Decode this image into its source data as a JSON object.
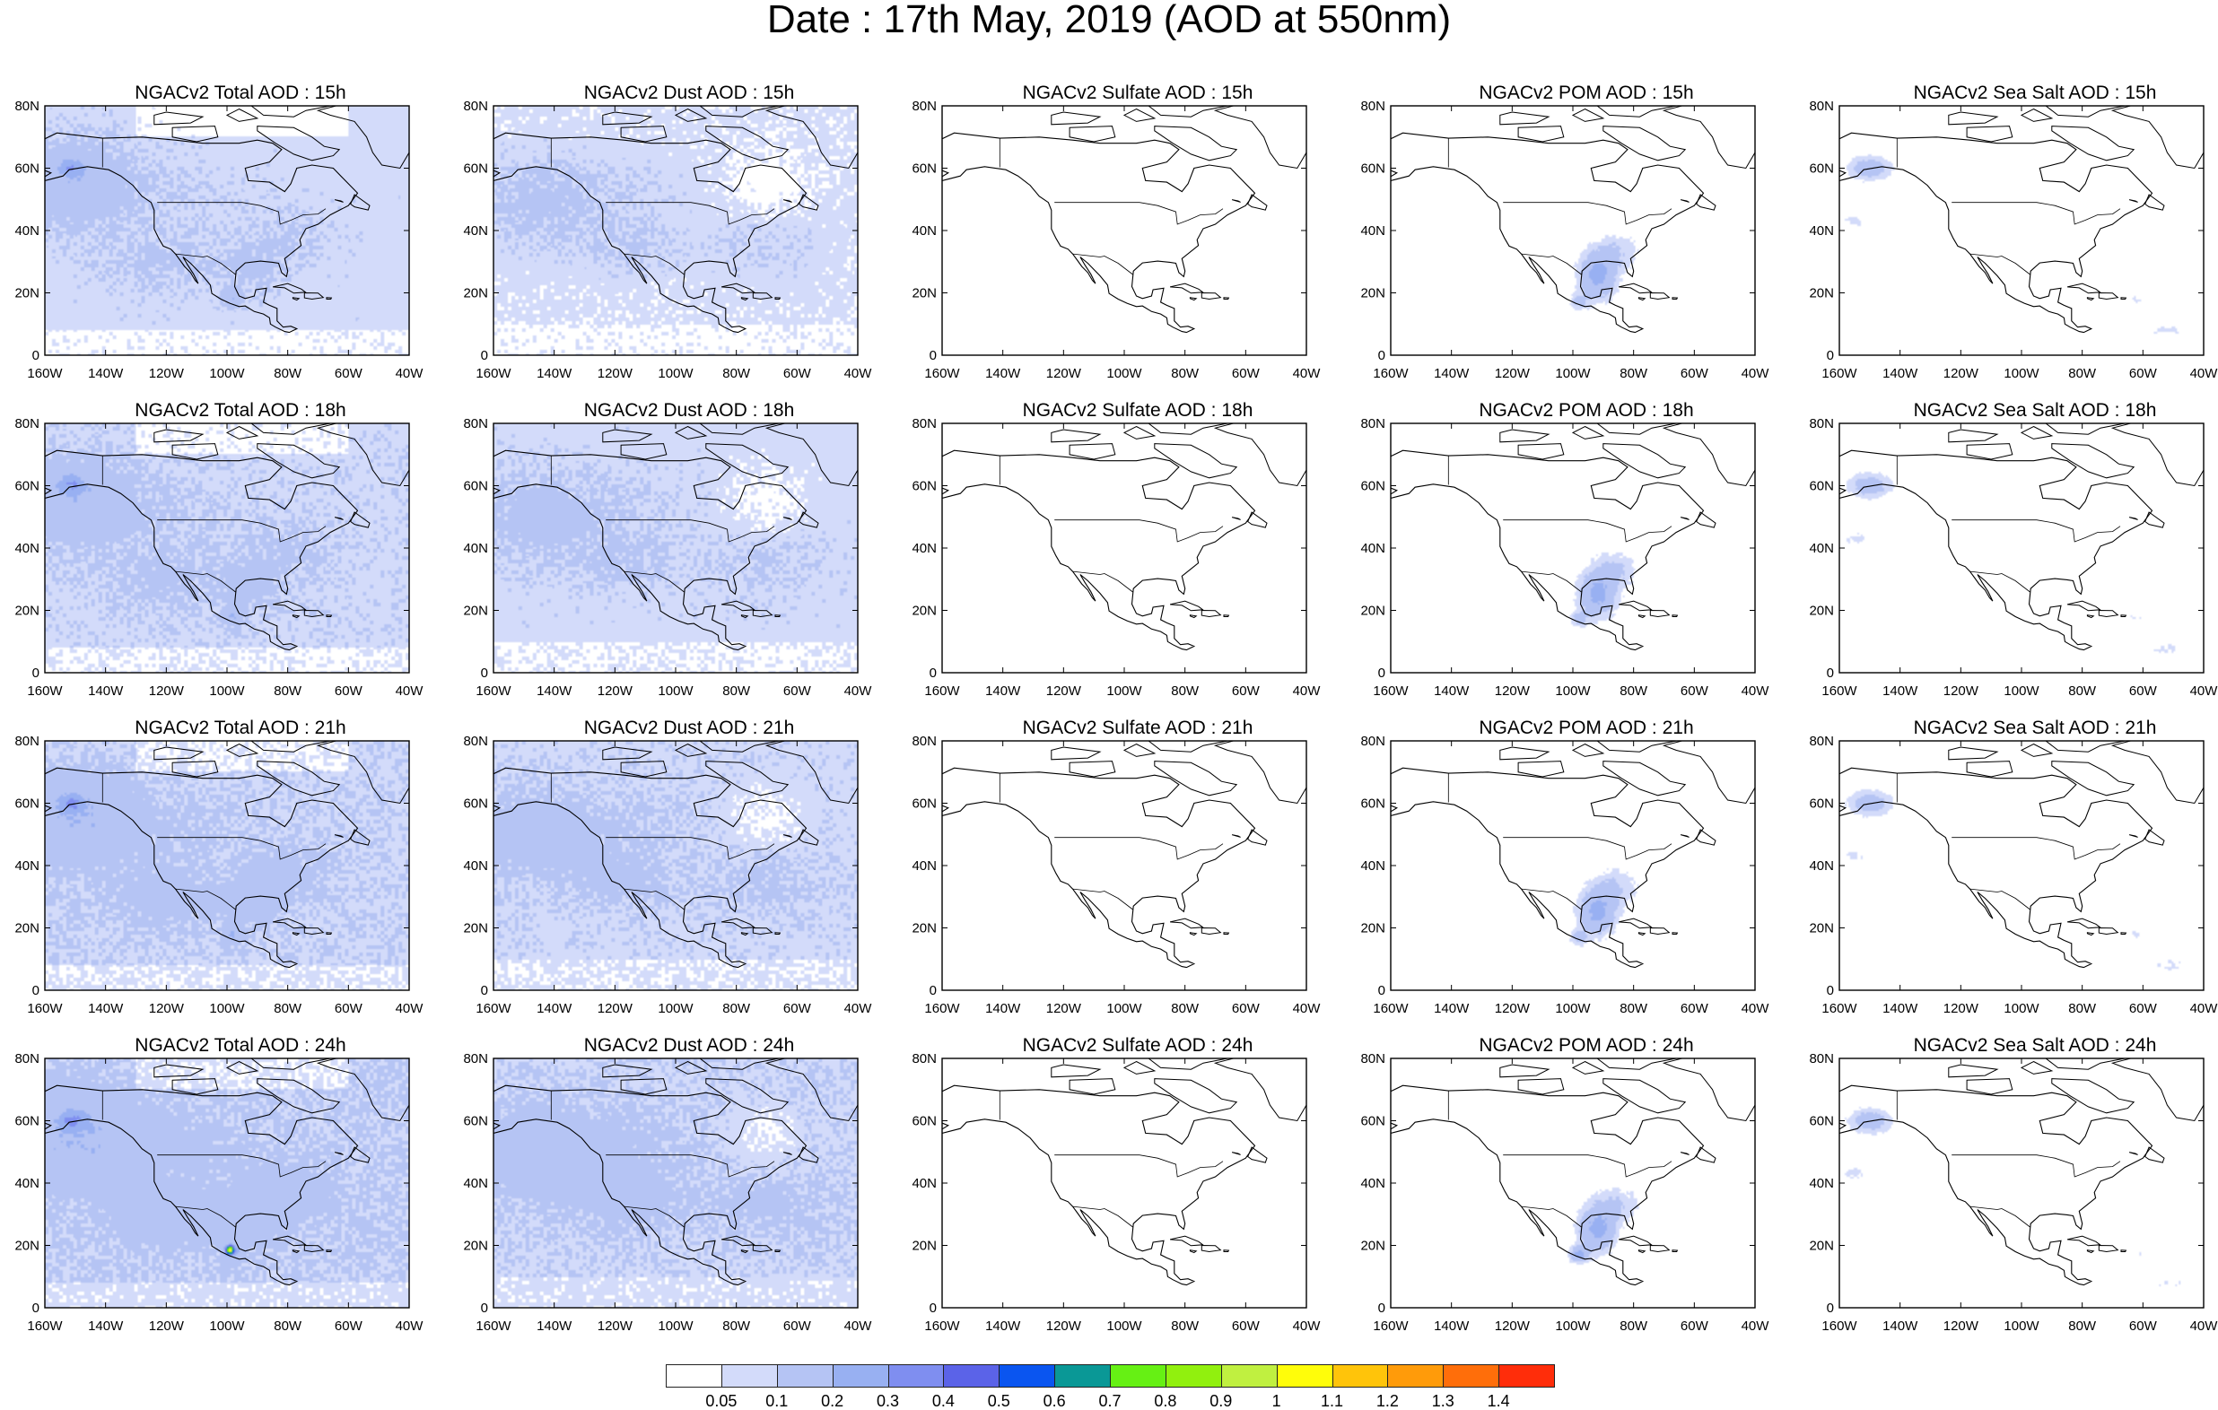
{
  "title": "Date : 17th May, 2019 (AOD at 550nm)",
  "panel_titles": [
    [
      "NGACv2 Total AOD : 15h",
      "NGACv2 Dust AOD : 15h",
      "NGACv2 Sulfate AOD : 15h",
      "NGACv2 POM AOD : 15h",
      "NGACv2 Sea Salt AOD : 15h"
    ],
    [
      "NGACv2 Total AOD : 18h",
      "NGACv2 Dust AOD : 18h",
      "NGACv2 Sulfate AOD : 18h",
      "NGACv2 POM AOD : 18h",
      "NGACv2 Sea Salt AOD : 18h"
    ],
    [
      "NGACv2 Total AOD : 21h",
      "NGACv2 Dust AOD : 21h",
      "NGACv2 Sulfate AOD : 21h",
      "NGACv2 POM AOD : 21h",
      "NGACv2 Sea Salt AOD : 21h"
    ],
    [
      "NGACv2 Total AOD : 24h",
      "NGACv2 Dust AOD : 24h",
      "NGACv2 Sulfate AOD : 24h",
      "NGACv2 POM AOD : 24h",
      "NGACv2 Sea Salt  AOD : 24h"
    ]
  ],
  "lat_ticks": [
    "0",
    "20N",
    "40N",
    "60N",
    "80N"
  ],
  "lon_ticks": [
    "160W",
    "140W",
    "120W",
    "100W",
    "80W",
    "60W",
    "40W"
  ],
  "map_extent": {
    "lon": [
      -160,
      -40
    ],
    "lat": [
      0,
      80
    ]
  },
  "colorbar": {
    "colors": [
      "#ffffff",
      "#d3dbfa",
      "#b5c4f4",
      "#98b0f2",
      "#7f8ef0",
      "#5b63e8",
      "#0a55f0",
      "#0a9896",
      "#66f014",
      "#91f00e",
      "#c0f040",
      "#fffd0a",
      "#ffc40a",
      "#ff9b0a",
      "#ff6e0a",
      "#ff2d0a"
    ],
    "labels": [
      "0.05",
      "0.1",
      "0.2",
      "0.3",
      "0.4",
      "0.5",
      "0.6",
      "0.7",
      "0.8",
      "0.9",
      "1",
      "1.1",
      "1.2",
      "1.3",
      "1.4"
    ]
  }
}
